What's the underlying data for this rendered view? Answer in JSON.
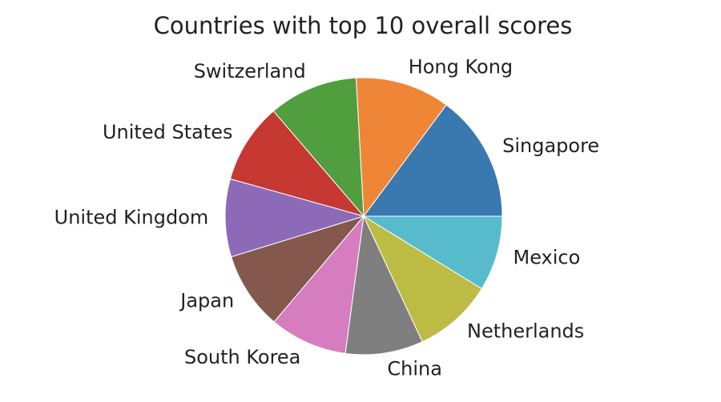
{
  "chart_data": {
    "type": "pie",
    "title": "Countries with top 10 overall scores",
    "categories": [
      "Singapore",
      "Hong Kong",
      "Switzerland",
      "United States",
      "United Kingdom",
      "Japan",
      "South Korea",
      "China",
      "Netherlands",
      "Mexico"
    ],
    "values": [
      14.4,
      10.7,
      10.1,
      9.1,
      8.8,
      8.8,
      8.8,
      8.8,
      9.0,
      8.5
    ],
    "colors": [
      "#3a78b0",
      "#ef8637",
      "#519e3e",
      "#c53932",
      "#8d6ab8",
      "#84584d",
      "#d57dbe",
      "#7f7f7f",
      "#bcbc45",
      "#58bbcc"
    ],
    "start_angle_degrees": 0,
    "direction": "counterclockwise",
    "legend": "none"
  }
}
